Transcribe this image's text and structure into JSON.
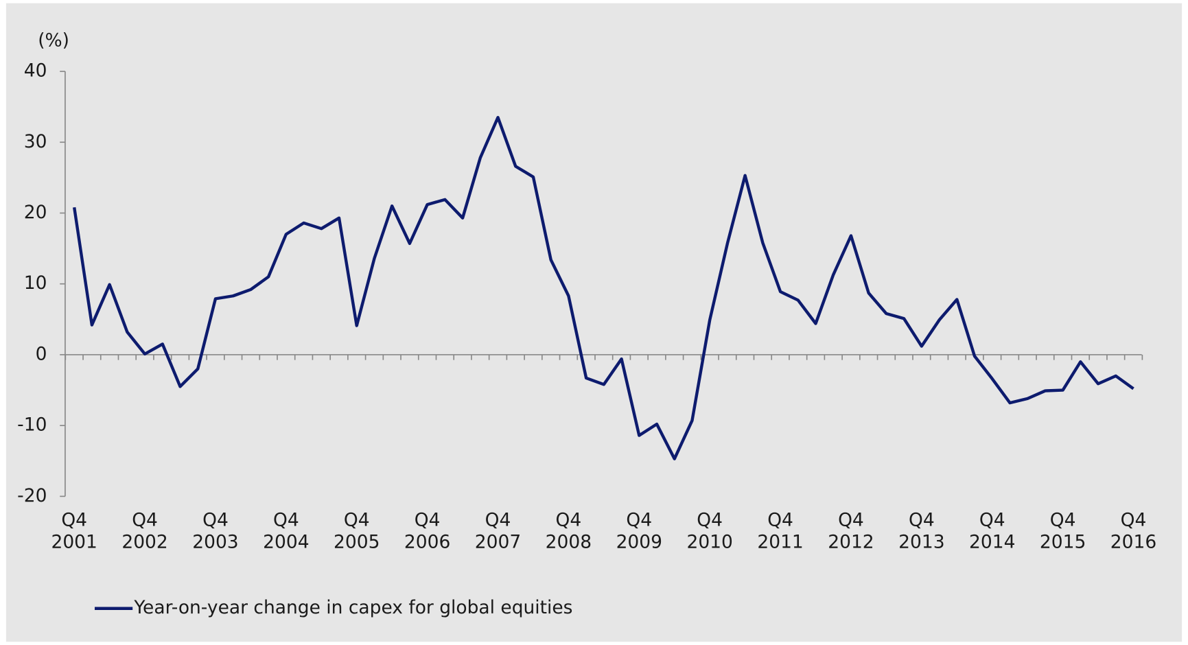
{
  "chart_data": {
    "type": "line",
    "y_label": "(%)",
    "categories": [
      "Q4\n2001",
      null,
      null,
      null,
      "Q4\n2002",
      null,
      null,
      null,
      "Q4\n2003",
      null,
      null,
      null,
      "Q4\n2004",
      null,
      null,
      null,
      "Q4\n2005",
      null,
      null,
      null,
      "Q4\n2006",
      null,
      null,
      null,
      "Q4\n2007",
      null,
      null,
      null,
      "Q4\n2008",
      null,
      null,
      null,
      "Q4\n2009",
      null,
      null,
      null,
      "Q4\n2010",
      null,
      null,
      null,
      "Q4\n2011",
      null,
      null,
      null,
      "Q4\n2012",
      null,
      null,
      null,
      "Q4\n2013",
      null,
      null,
      null,
      "Q4\n2014",
      null,
      null,
      null,
      "Q4\n2015",
      null,
      null,
      null,
      "Q4\n2016"
    ],
    "series": [
      {
        "name": "Year-on-year change in capex for global equities",
        "color": "#0d1b6e",
        "values": [
          20.8,
          4.2,
          9.9,
          3.2,
          0.1,
          1.5,
          -4.5,
          -2.0,
          7.9,
          8.3,
          9.2,
          11.0,
          17.0,
          18.6,
          17.8,
          19.3,
          4.1,
          13.6,
          21.0,
          15.7,
          21.2,
          21.9,
          19.3,
          27.8,
          33.5,
          26.6,
          25.1,
          13.4,
          8.3,
          -3.3,
          -4.2,
          -0.6,
          -11.4,
          -9.8,
          -14.7,
          -9.3,
          4.9,
          15.7,
          25.3,
          15.8,
          8.9,
          7.7,
          4.4,
          11.3,
          16.8,
          8.7,
          5.8,
          5.1,
          1.2,
          4.9,
          7.8,
          -0.2,
          -3.4,
          -6.8,
          -6.2,
          -5.1,
          -5.0,
          -1.0,
          -4.1,
          -3.0,
          -4.8
        ]
      }
    ],
    "ylim": [
      -20,
      40
    ],
    "yticks": [
      -20,
      -10,
      0,
      10,
      20,
      30,
      40
    ],
    "grid": false,
    "legend": "bottom-left"
  }
}
